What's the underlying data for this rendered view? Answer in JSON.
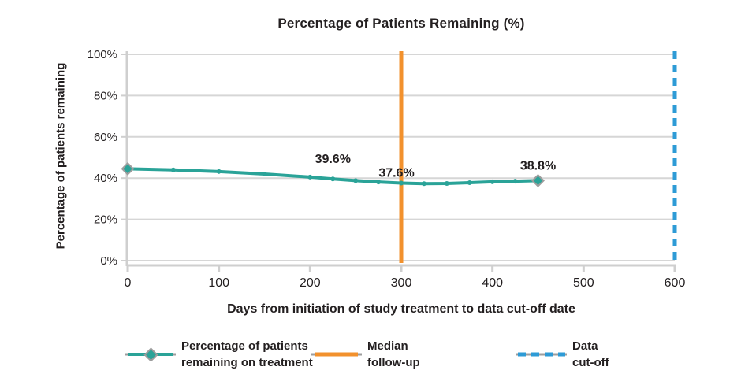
{
  "title": "Percentage of Patients Remaining (%)",
  "colors": {
    "text": "#231f20",
    "grid": "#d6d6d6",
    "axis": "#cfcfcf",
    "series_teal": "#2aa398",
    "event_orange": "#f2912d",
    "cutoff_blue": "#2e9bd6",
    "legend_cap_gray": "#9d9d9d"
  },
  "chart_data": {
    "type": "line",
    "title": "Percentage of Patients Remaining (%)",
    "xlabel": "Days from initiation of study treatment to data cut-off date",
    "ylabel": "Percentage of patients remaining",
    "x_range": [
      0,
      600
    ],
    "x_ticks": [
      0,
      100,
      200,
      300,
      400,
      500,
      600
    ],
    "x_tick_labels": [
      "0",
      "100",
      "200",
      "300",
      "400",
      "500",
      "600"
    ],
    "y_range": [
      0,
      100
    ],
    "y_ticks": [
      0,
      20,
      40,
      60,
      80,
      100
    ],
    "y_tick_labels": [
      "0%",
      "20%",
      "40%",
      "60%",
      "80%",
      "100%"
    ],
    "grid": "horizontal",
    "legend_position": "bottom",
    "series": [
      {
        "name": "Percentage of patients remaining on treatment",
        "color": "#2aa398",
        "x": [
          0,
          50,
          100,
          150,
          200,
          225,
          250,
          275,
          300,
          325,
          350,
          375,
          400,
          425,
          450
        ],
        "y": [
          44.5,
          44.0,
          43.2,
          42.0,
          40.5,
          39.6,
          38.8,
          38.1,
          37.6,
          37.3,
          37.4,
          37.8,
          38.2,
          38.5,
          38.8
        ]
      }
    ],
    "point_labels": [
      {
        "x": 225,
        "y": 39.6,
        "label": "39.6%"
      },
      {
        "x": 300,
        "y": 37.6,
        "label": "37.6%"
      },
      {
        "x": 450,
        "y": 38.8,
        "label": "38.8%"
      }
    ],
    "vlines": [
      {
        "x": 300,
        "color": "#f2912d",
        "style": "solid",
        "name": "Median follow-up"
      },
      {
        "x": 600,
        "color": "#2e9bd6",
        "style": "dashed",
        "name": "Data cut-off"
      }
    ]
  },
  "legend": {
    "items": [
      {
        "sample": "teal-line-with-marker",
        "color": "#2aa398",
        "line1": "Percentage of patients",
        "line2": "remaining on treatment"
      },
      {
        "sample": "orange-solid-line",
        "color": "#f2912d",
        "line1": "Median",
        "line2": "follow-up"
      },
      {
        "sample": "blue-dashed-line",
        "color": "#2e9bd6",
        "line1": "Data",
        "line2": "cut-off"
      }
    ]
  }
}
